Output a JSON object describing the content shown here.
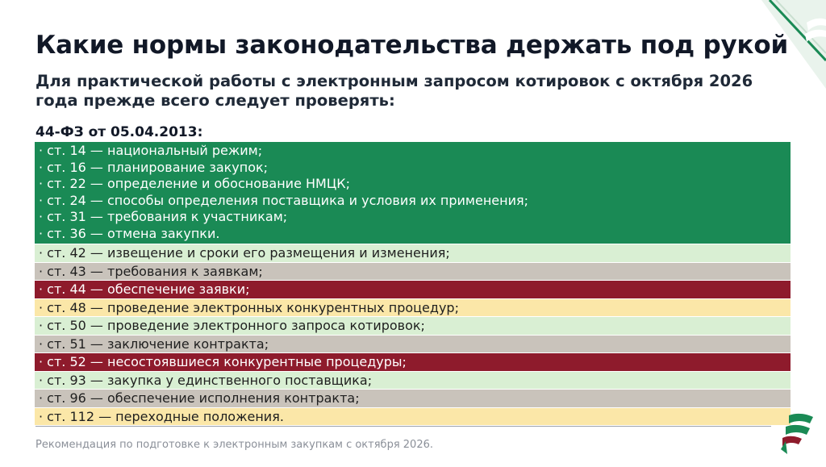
{
  "slide": {
    "title": "Какие нормы законодательства держать под рукой",
    "subtitle": "Для практической работы с электронным запросом котировок с октября 2026 года прежде всего следует проверять:",
    "law_heading": "44-ФЗ от 05.04.2013:",
    "footer": "Рекомендация по подготовке к электронным закупкам с октября 2026."
  },
  "articles_group": [
    "· ст. 14 — национальный режим;",
    "· ст. 16 — планирование закупок;",
    "· ст. 22 — определение и обоснование НМЦК;",
    "· ст. 24 — способы определения  поставщика и условия их применения;",
    "· ст. 31 — требования к участникам;",
    "· ст. 36 — отмена закупки."
  ],
  "articles": [
    {
      "text": "· ст. 42 — извещение и сроки его размещения и изменения;",
      "color": "#d9efd3"
    },
    {
      "text": "· ст. 43 — требования к заявкам;",
      "color": "#c9c3bb"
    },
    {
      "text": "· ст. 44 — обеспечение заявки;",
      "color": "#8e1b2c"
    },
    {
      "text": "· ст. 48 — проведение электронных конкурентных процедур;",
      "color": "#fbe7a8"
    },
    {
      "text": "· ст. 50 — проведение электронного запроса котировок;",
      "color": "#d9efd3"
    },
    {
      "text": "· ст. 51 — заключение контракта;",
      "color": "#c9c3bb"
    },
    {
      "text": "· ст. 52 — несостоявшиеся конкурентные процедуры;",
      "color": "#8e1b2c"
    },
    {
      "text": "· ст. 93 — закупка у единственного поставщика;",
      "color": "#d9efd3"
    },
    {
      "text": "· ст. 96 — обеспечение исполнения контракта;",
      "color": "#c9c3bb"
    },
    {
      "text": "· ст. 112 — переходные положения.",
      "color": "#fbe7a8"
    }
  ],
  "colors": {
    "green": "#1a8a55",
    "light_green": "#d9efd3",
    "gray": "#c9c3bb",
    "red": "#8e1b2c",
    "yellow": "#fbe7a8"
  },
  "icons": {
    "corner": "brand-corner-logo",
    "bottom": "brand-logo-icon"
  }
}
